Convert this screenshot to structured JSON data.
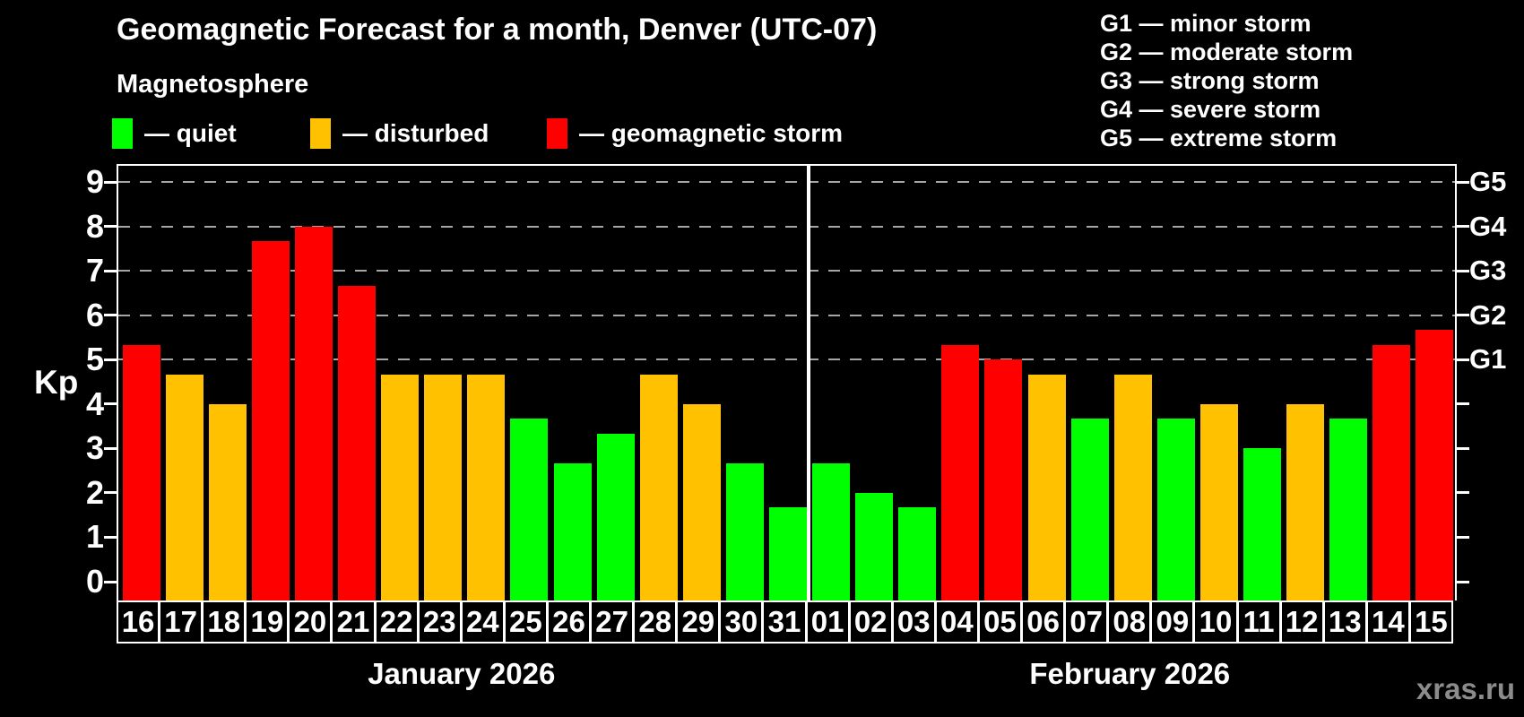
{
  "watermark": "xras.ru",
  "status_colors": {
    "quiet": "#00ff00",
    "disturbed": "#ffc100",
    "storm": "#ff0000"
  },
  "chart_data": {
    "type": "bar",
    "title": "Geomagnetic Forecast for a month, Denver (UTC-07)",
    "subtitle": "Magnetosphere",
    "ylabel": "Kp",
    "ylim": [
      0,
      9.4
    ],
    "yticks": [
      0,
      1,
      2,
      3,
      4,
      5,
      6,
      7,
      8,
      9
    ],
    "gridlines_at": [
      5,
      6,
      7,
      8,
      9
    ],
    "grid": "dashed horizontal lines at G-storm levels only",
    "legend_position": "top-left",
    "legend": [
      {
        "label": "— quiet",
        "status": "quiet",
        "color": "#00ff00"
      },
      {
        "label": "— disturbed",
        "status": "disturbed",
        "color": "#ffc100"
      },
      {
        "label": "— geomagnetic storm",
        "status": "storm",
        "color": "#ff0000"
      }
    ],
    "g_scale_legend": [
      "G1 — minor storm",
      "G2 — moderate storm",
      "G3 — strong storm",
      "G4 — severe storm",
      "G5 — extreme storm"
    ],
    "right_axis_labels": [
      {
        "kp": 5,
        "label": "G1"
      },
      {
        "kp": 6,
        "label": "G2"
      },
      {
        "kp": 7,
        "label": "G3"
      },
      {
        "kp": 8,
        "label": "G4"
      },
      {
        "kp": 9,
        "label": "G5"
      }
    ],
    "months": [
      {
        "label": "January 2026",
        "days": [
          {
            "day": "16",
            "kp": 5.33,
            "status": "storm"
          },
          {
            "day": "17",
            "kp": 4.67,
            "status": "disturbed"
          },
          {
            "day": "18",
            "kp": 4.0,
            "status": "disturbed"
          },
          {
            "day": "19",
            "kp": 7.67,
            "status": "storm"
          },
          {
            "day": "20",
            "kp": 8.0,
            "status": "storm"
          },
          {
            "day": "21",
            "kp": 6.67,
            "status": "storm"
          },
          {
            "day": "22",
            "kp": 4.67,
            "status": "disturbed"
          },
          {
            "day": "23",
            "kp": 4.67,
            "status": "disturbed"
          },
          {
            "day": "24",
            "kp": 4.67,
            "status": "disturbed"
          },
          {
            "day": "25",
            "kp": 3.67,
            "status": "quiet"
          },
          {
            "day": "26",
            "kp": 2.67,
            "status": "quiet"
          },
          {
            "day": "27",
            "kp": 3.33,
            "status": "quiet"
          },
          {
            "day": "28",
            "kp": 4.67,
            "status": "disturbed"
          },
          {
            "day": "29",
            "kp": 4.0,
            "status": "disturbed"
          },
          {
            "day": "30",
            "kp": 2.67,
            "status": "quiet"
          },
          {
            "day": "31",
            "kp": 1.67,
            "status": "quiet"
          }
        ]
      },
      {
        "label": "February 2026",
        "days": [
          {
            "day": "01",
            "kp": 2.67,
            "status": "quiet"
          },
          {
            "day": "02",
            "kp": 2.0,
            "status": "quiet"
          },
          {
            "day": "03",
            "kp": 1.67,
            "status": "quiet"
          },
          {
            "day": "04",
            "kp": 5.33,
            "status": "storm"
          },
          {
            "day": "05",
            "kp": 5.0,
            "status": "storm"
          },
          {
            "day": "06",
            "kp": 4.67,
            "status": "disturbed"
          },
          {
            "day": "07",
            "kp": 3.67,
            "status": "quiet"
          },
          {
            "day": "08",
            "kp": 4.67,
            "status": "disturbed"
          },
          {
            "day": "09",
            "kp": 3.67,
            "status": "quiet"
          },
          {
            "day": "10",
            "kp": 4.0,
            "status": "disturbed"
          },
          {
            "day": "11",
            "kp": 3.0,
            "status": "quiet"
          },
          {
            "day": "12",
            "kp": 4.0,
            "status": "disturbed"
          },
          {
            "day": "13",
            "kp": 3.67,
            "status": "quiet"
          },
          {
            "day": "14",
            "kp": 5.33,
            "status": "storm"
          },
          {
            "day": "15",
            "kp": 5.67,
            "status": "storm"
          }
        ]
      }
    ]
  }
}
